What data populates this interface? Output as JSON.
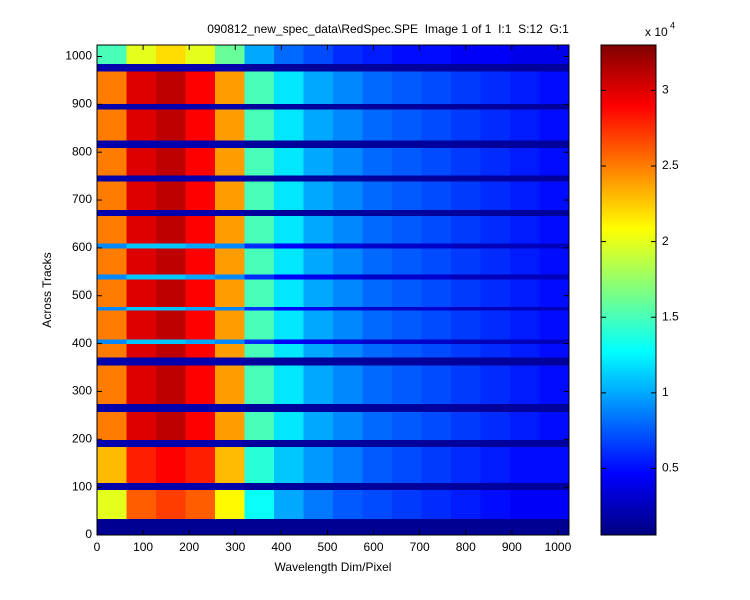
{
  "chart_data": {
    "type": "heatmap",
    "title": "090812_new_spec_data\\RedSpec.SPE  Image 1 of 1  I:1  S:12  G:1",
    "x_label": "Wavelength Dim/Pixel",
    "y_label": "Across Tracks",
    "xlim": [
      0,
      1024
    ],
    "ylim": [
      0,
      1024
    ],
    "xticks": [
      0,
      100,
      200,
      300,
      400,
      500,
      600,
      700,
      800,
      900,
      1000
    ],
    "yticks": [
      0,
      100,
      200,
      300,
      400,
      500,
      600,
      700,
      800,
      900,
      1000
    ],
    "colormap": "jet",
    "clim": [
      0.06,
      3.3
    ],
    "colorbar_ticks": [
      0.5,
      1,
      1.5,
      2,
      2.5,
      3
    ],
    "colorbar_multiplier": "x 10",
    "colorbar_exponent": 4,
    "x_edges": [
      0,
      64,
      128,
      192,
      256,
      320,
      384,
      448,
      512,
      576,
      640,
      704,
      768,
      832,
      896,
      960,
      1024
    ],
    "y_edges": [
      0,
      35,
      95,
      110,
      185,
      200,
      258,
      275,
      355,
      372,
      400,
      410,
      470,
      478,
      535,
      545,
      600,
      610,
      668,
      680,
      740,
      752,
      810,
      825,
      890,
      902,
      970,
      985,
      1024
    ],
    "values": [
      [
        0.12,
        0.12,
        0.12,
        0.12,
        0.12,
        0.12,
        0.12,
        0.12,
        0.12,
        0.12,
        0.12,
        0.12,
        0.12,
        0.12,
        0.12,
        0.12
      ],
      [
        2.0,
        2.6,
        2.7,
        2.6,
        2.1,
        1.3,
        1.0,
        0.85,
        0.75,
        0.7,
        0.65,
        0.6,
        0.55,
        0.5,
        0.45,
        0.45
      ],
      [
        0.2,
        0.2,
        0.2,
        0.2,
        0.2,
        0.15,
        0.15,
        0.15,
        0.15,
        0.15,
        0.15,
        0.15,
        0.15,
        0.15,
        0.15,
        0.15
      ],
      [
        2.3,
        2.8,
        2.9,
        2.8,
        2.3,
        1.4,
        1.1,
        0.95,
        0.85,
        0.75,
        0.7,
        0.65,
        0.6,
        0.55,
        0.5,
        0.5
      ],
      [
        0.2,
        0.2,
        0.2,
        0.2,
        0.2,
        0.15,
        0.15,
        0.15,
        0.15,
        0.15,
        0.15,
        0.15,
        0.15,
        0.15,
        0.15,
        0.15
      ],
      [
        2.5,
        3.0,
        3.1,
        2.9,
        2.4,
        1.5,
        1.2,
        1.0,
        0.9,
        0.8,
        0.75,
        0.7,
        0.65,
        0.6,
        0.55,
        0.5
      ],
      [
        0.2,
        0.2,
        0.2,
        0.2,
        0.2,
        0.15,
        0.15,
        0.15,
        0.15,
        0.15,
        0.15,
        0.15,
        0.15,
        0.15,
        0.15,
        0.15
      ],
      [
        2.5,
        3.0,
        3.1,
        2.9,
        2.4,
        1.5,
        1.2,
        1.0,
        0.9,
        0.8,
        0.75,
        0.7,
        0.65,
        0.6,
        0.55,
        0.5
      ],
      [
        0.2,
        0.2,
        0.2,
        0.2,
        0.2,
        0.15,
        0.15,
        0.15,
        0.15,
        0.15,
        0.15,
        0.15,
        0.15,
        0.15,
        0.15,
        0.15
      ],
      [
        2.5,
        3.0,
        3.1,
        2.9,
        2.4,
        1.5,
        1.2,
        1.0,
        0.9,
        0.8,
        0.75,
        0.7,
        0.65,
        0.6,
        0.55,
        0.5
      ],
      [
        0.9,
        1.1,
        1.1,
        1.0,
        0.9,
        0.6,
        0.45,
        0.4,
        0.35,
        0.3,
        0.3,
        0.3,
        0.25,
        0.25,
        0.25,
        0.25
      ],
      [
        2.5,
        3.0,
        3.1,
        2.9,
        2.4,
        1.5,
        1.2,
        1.0,
        0.9,
        0.8,
        0.75,
        0.7,
        0.65,
        0.6,
        0.55,
        0.5
      ],
      [
        0.9,
        1.1,
        1.1,
        1.0,
        0.9,
        0.6,
        0.45,
        0.4,
        0.35,
        0.3,
        0.3,
        0.3,
        0.25,
        0.25,
        0.25,
        0.25
      ],
      [
        2.5,
        3.0,
        3.1,
        2.9,
        2.4,
        1.5,
        1.2,
        1.0,
        0.9,
        0.8,
        0.75,
        0.7,
        0.65,
        0.6,
        0.55,
        0.5
      ],
      [
        0.9,
        1.1,
        1.1,
        1.0,
        0.9,
        0.6,
        0.45,
        0.4,
        0.35,
        0.3,
        0.3,
        0.3,
        0.25,
        0.25,
        0.25,
        0.25
      ],
      [
        2.5,
        3.0,
        3.1,
        2.9,
        2.4,
        1.5,
        1.2,
        1.0,
        0.9,
        0.8,
        0.75,
        0.7,
        0.65,
        0.6,
        0.55,
        0.5
      ],
      [
        0.9,
        1.1,
        1.1,
        1.0,
        0.9,
        0.6,
        0.45,
        0.4,
        0.35,
        0.3,
        0.3,
        0.3,
        0.25,
        0.25,
        0.25,
        0.25
      ],
      [
        2.5,
        3.0,
        3.1,
        2.9,
        2.4,
        1.5,
        1.2,
        1.0,
        0.9,
        0.8,
        0.75,
        0.7,
        0.65,
        0.6,
        0.55,
        0.5
      ],
      [
        0.2,
        0.2,
        0.2,
        0.2,
        0.2,
        0.15,
        0.15,
        0.15,
        0.15,
        0.15,
        0.15,
        0.15,
        0.15,
        0.15,
        0.15,
        0.15
      ],
      [
        2.5,
        3.0,
        3.1,
        2.9,
        2.4,
        1.5,
        1.2,
        1.0,
        0.9,
        0.8,
        0.75,
        0.7,
        0.65,
        0.6,
        0.55,
        0.5
      ],
      [
        0.2,
        0.2,
        0.2,
        0.2,
        0.2,
        0.15,
        0.15,
        0.15,
        0.15,
        0.15,
        0.15,
        0.15,
        0.15,
        0.15,
        0.15,
        0.15
      ],
      [
        2.5,
        3.0,
        3.1,
        2.9,
        2.4,
        1.5,
        1.2,
        1.0,
        0.9,
        0.8,
        0.75,
        0.7,
        0.65,
        0.6,
        0.55,
        0.5
      ],
      [
        0.2,
        0.2,
        0.2,
        0.2,
        0.2,
        0.15,
        0.15,
        0.15,
        0.15,
        0.15,
        0.15,
        0.15,
        0.15,
        0.15,
        0.15,
        0.15
      ],
      [
        2.5,
        3.0,
        3.1,
        2.9,
        2.4,
        1.5,
        1.2,
        1.0,
        0.9,
        0.8,
        0.75,
        0.7,
        0.65,
        0.6,
        0.55,
        0.5
      ],
      [
        0.2,
        0.2,
        0.2,
        0.2,
        0.2,
        0.15,
        0.15,
        0.15,
        0.15,
        0.15,
        0.15,
        0.15,
        0.15,
        0.15,
        0.15,
        0.15
      ],
      [
        2.5,
        3.0,
        3.1,
        2.9,
        2.4,
        1.5,
        1.2,
        1.0,
        0.9,
        0.8,
        0.75,
        0.7,
        0.65,
        0.6,
        0.55,
        0.5
      ],
      [
        0.2,
        0.2,
        0.2,
        0.2,
        0.2,
        0.15,
        0.15,
        0.15,
        0.15,
        0.15,
        0.15,
        0.15,
        0.15,
        0.15,
        0.15,
        0.15
      ],
      [
        1.5,
        2.0,
        2.2,
        2.0,
        1.6,
        1.0,
        0.8,
        0.7,
        0.6,
        0.55,
        0.5,
        0.5,
        0.45,
        0.45,
        0.4,
        0.4
      ]
    ]
  }
}
